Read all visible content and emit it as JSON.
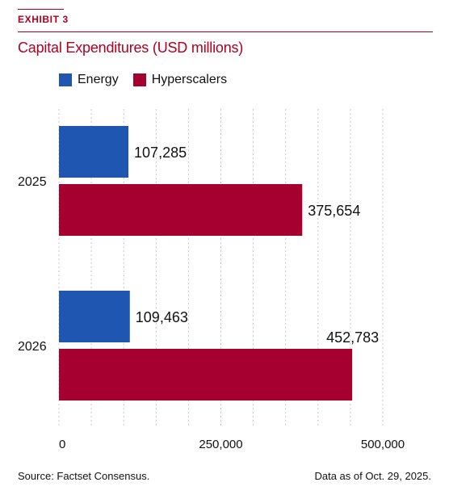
{
  "header": {
    "exhibit": "EXHIBIT 3",
    "title": "Capital Expenditures (USD millions)"
  },
  "colors": {
    "accent": "#b00020",
    "energy": "#1f56b2",
    "hyperscalers": "#a5002f",
    "grid": "#c8c8c8"
  },
  "chart_data": {
    "type": "bar",
    "orientation": "horizontal",
    "categories": [
      "2025",
      "2026"
    ],
    "series": [
      {
        "name": "Energy",
        "values": [
          107285,
          109463
        ],
        "labels": [
          "107,285",
          "109,463"
        ]
      },
      {
        "name": "Hyperscalers",
        "values": [
          375654,
          452783
        ],
        "labels": [
          "375,654",
          "452,783"
        ]
      }
    ],
    "xlim": [
      0,
      500000
    ],
    "xticks": [
      0,
      250000,
      500000
    ],
    "xtick_labels": [
      "0",
      "250,000",
      "500,000"
    ],
    "grid": true,
    "legend_position": "top-left"
  },
  "footer": {
    "source": "Source: Factset Consensus.",
    "date": "Data as of Oct. 29, 2025."
  }
}
